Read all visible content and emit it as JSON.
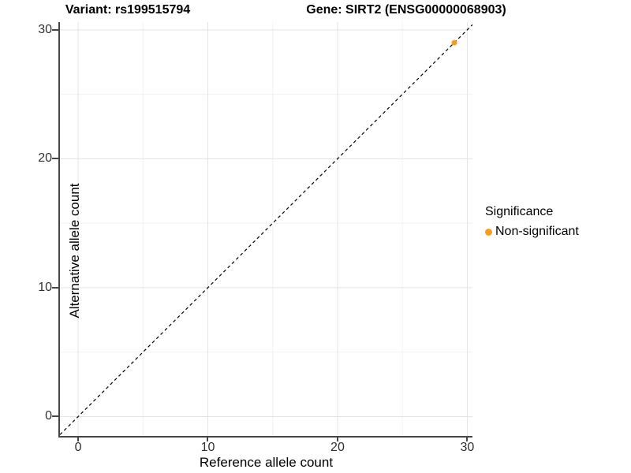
{
  "chart_data": {
    "type": "scatter",
    "title_left": "Variant: rs199515794",
    "title_right": "Gene: SIRT2 (ENSG00000068903)",
    "xlabel": "Reference allele count",
    "ylabel": "Alternative allele count",
    "xlim": [
      -1.4,
      30.4
    ],
    "ylim": [
      -1.5,
      30.6
    ],
    "x_ticks": [
      0,
      10,
      20,
      30
    ],
    "y_ticks": [
      0,
      10,
      20,
      30
    ],
    "x_minor_ticks": [
      5,
      15,
      25
    ],
    "y_minor_ticks": [
      5,
      15,
      25
    ],
    "grid": "major+minor",
    "reference_line": {
      "type": "identity_y_equals_x",
      "style": "dashed",
      "color": "#000000"
    },
    "series": [
      {
        "name": "Non-significant",
        "color": "#F99B1D",
        "points": [
          {
            "x": 29,
            "y": 29
          }
        ]
      }
    ],
    "legend": {
      "title": "Significance",
      "position": "right",
      "entries": [
        {
          "label": "Non-significant",
          "color": "#F99B1D"
        }
      ]
    }
  },
  "colors": {
    "grid_major": "#E3E3E3",
    "grid_minor": "#F1F1F1",
    "axis_line": "#464646",
    "tick_label": "#303030",
    "text": "#000000",
    "background": "#FFFFFF"
  }
}
